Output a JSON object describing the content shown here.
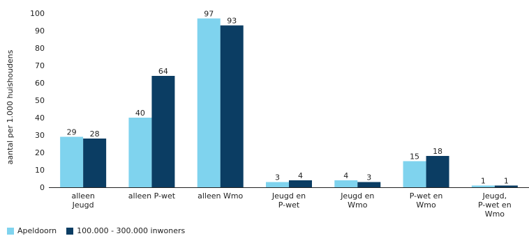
{
  "chart_data": {
    "type": "bar",
    "ylabel": "aantal per 1.000 huishoudens",
    "ylim": [
      0,
      100
    ],
    "yticks": [
      0,
      10,
      20,
      30,
      40,
      50,
      60,
      70,
      80,
      90,
      100
    ],
    "grid": false,
    "legend_position": "bottom-left",
    "categories": [
      [
        "alleen",
        "Jeugd"
      ],
      [
        "alleen P-wet"
      ],
      [
        "alleen Wmo"
      ],
      [
        "Jeugd en",
        "P-wet"
      ],
      [
        "Jeugd en",
        "Wmo"
      ],
      [
        "P-wet en",
        "Wmo"
      ],
      [
        "Jeugd,",
        "P-wet en",
        "Wmo"
      ]
    ],
    "series": [
      {
        "name": "Apeldoorn",
        "color": "#7fd3ee",
        "values": [
          29,
          40,
          97,
          3,
          4,
          15,
          1
        ]
      },
      {
        "name": "100.000 - 300.000 inwoners",
        "color": "#0b3d63",
        "values": [
          28,
          64,
          93,
          4,
          3,
          18,
          1
        ]
      }
    ]
  }
}
